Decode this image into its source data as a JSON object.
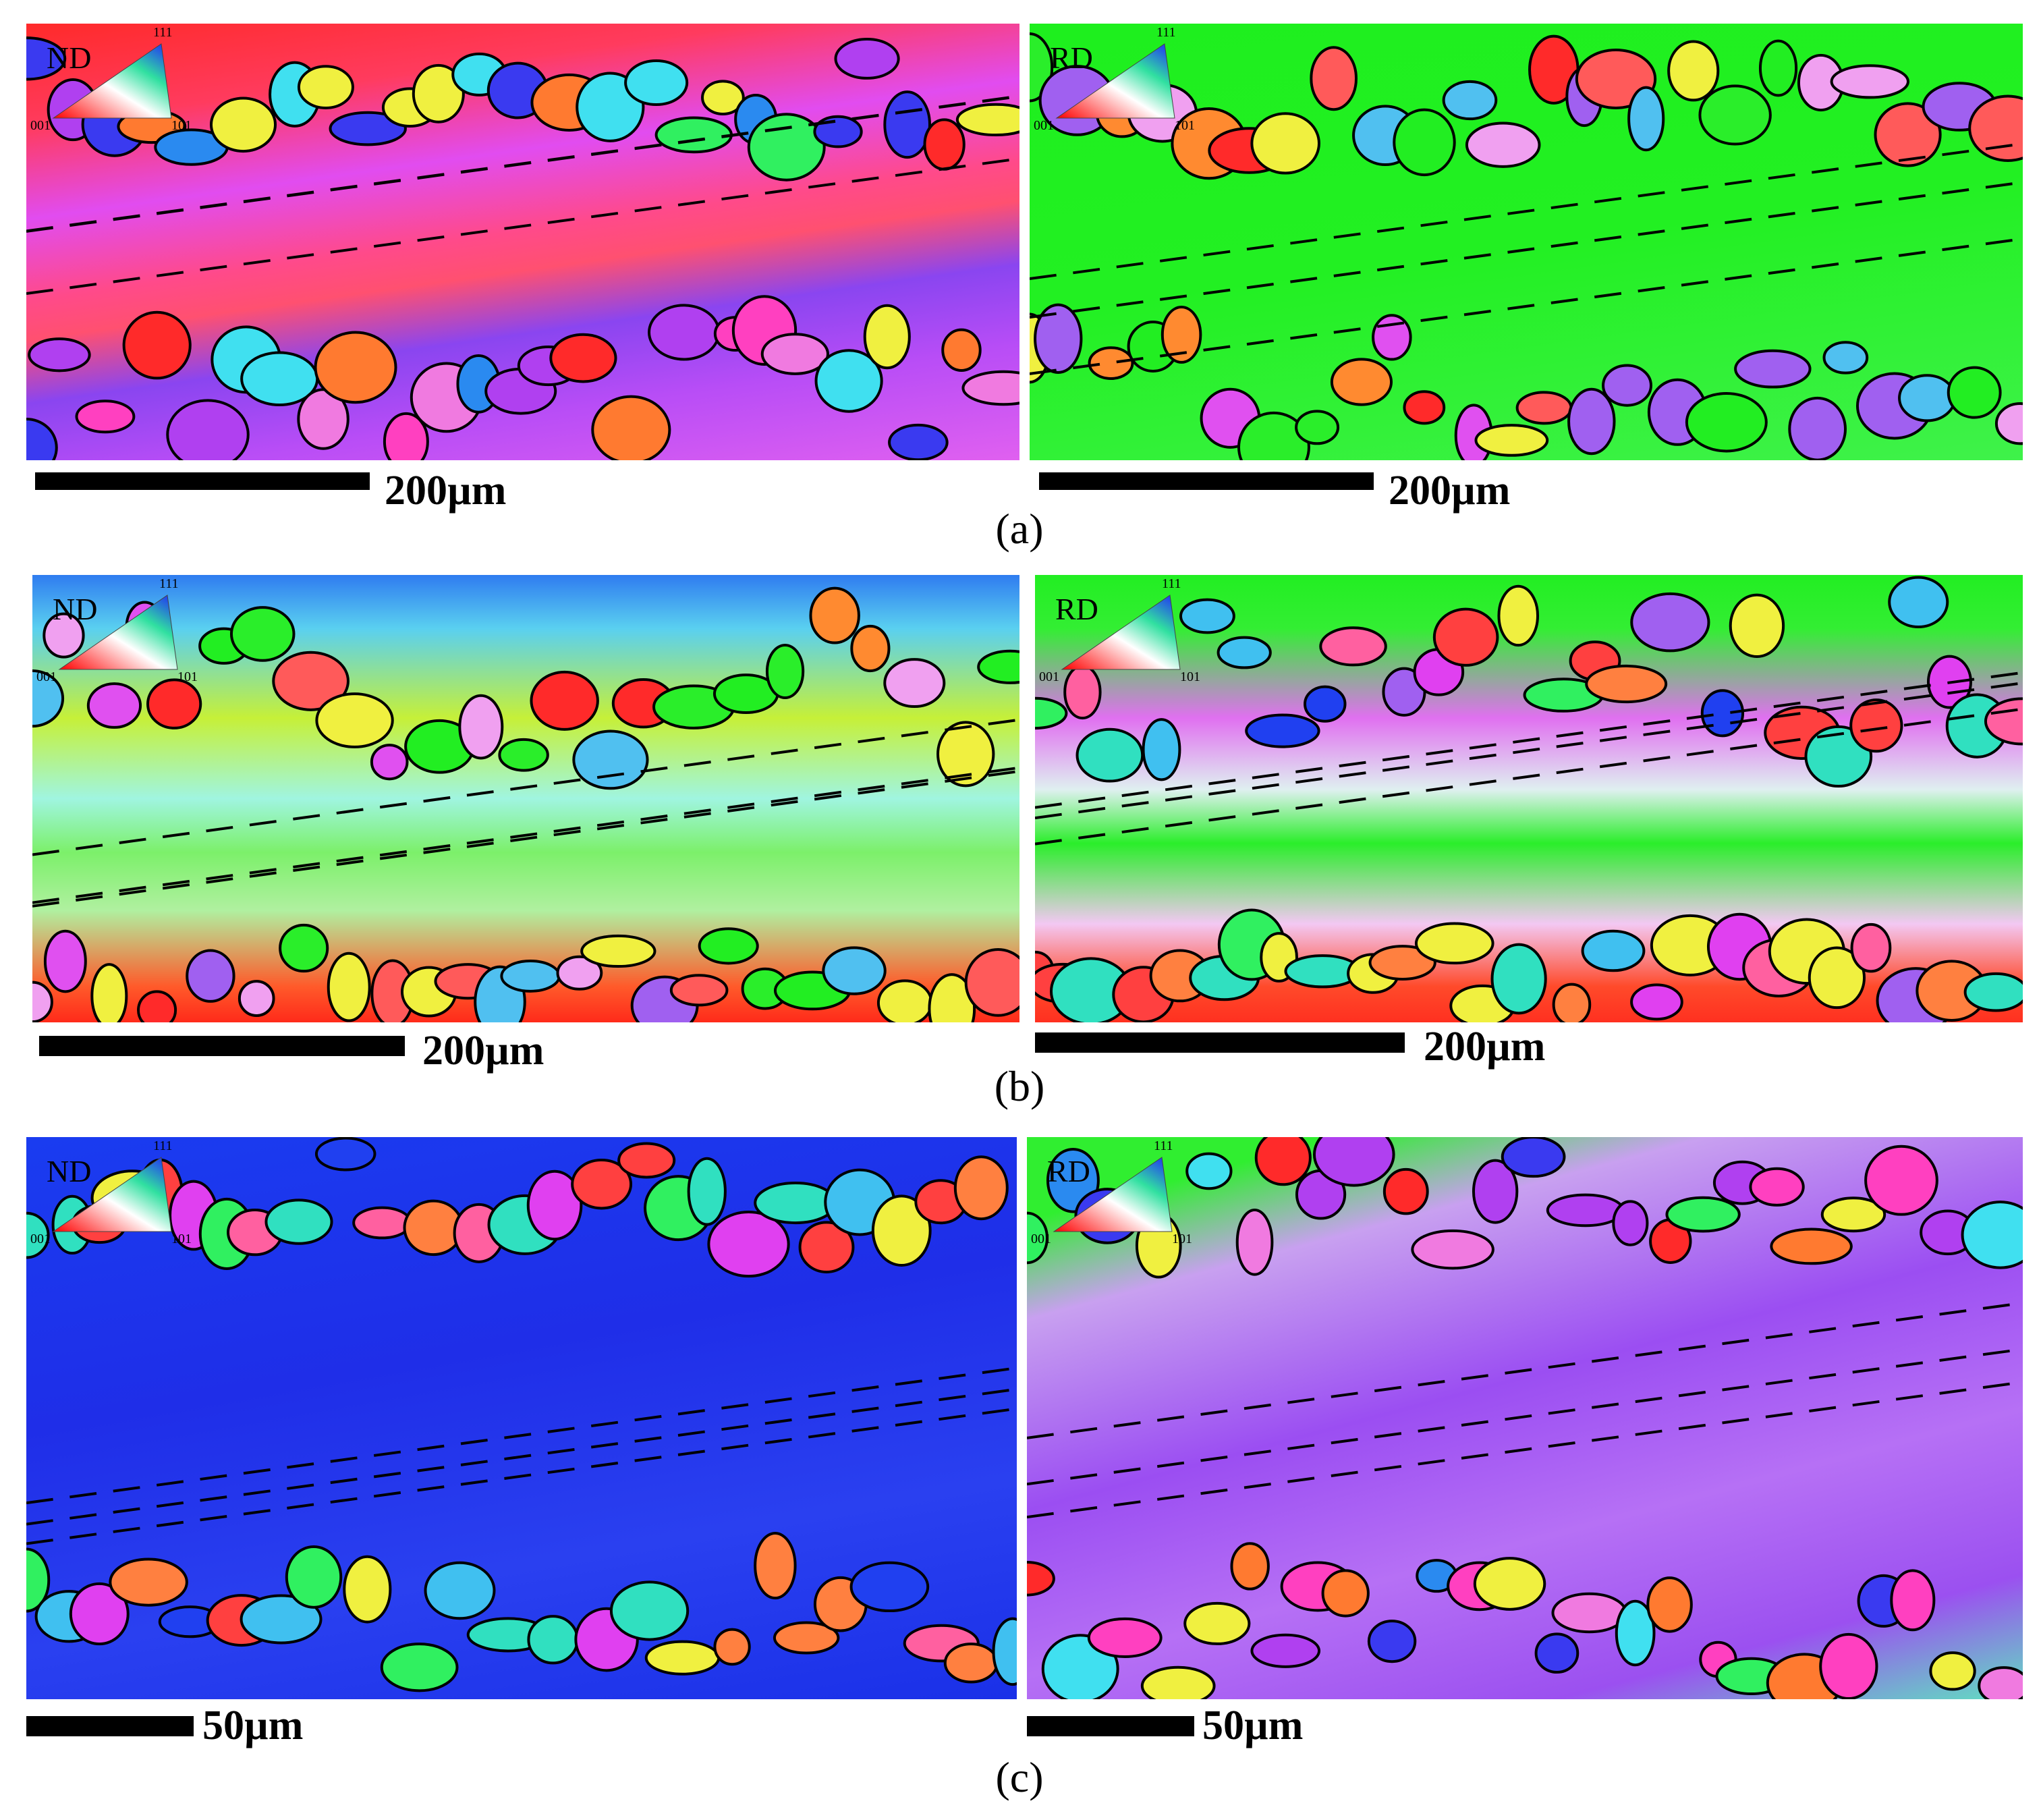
{
  "figure": {
    "rows": [
      {
        "label": "(a)",
        "maps": [
          {
            "direction": "ND",
            "key": {
              "top": "111",
              "left": "001",
              "right": "101"
            },
            "scale_bar": "200µm"
          },
          {
            "direction": "RD",
            "key": {
              "top": "111",
              "left": "001",
              "right": "101"
            },
            "scale_bar": "200µm"
          }
        ]
      },
      {
        "label": "(b)",
        "maps": [
          {
            "direction": "ND",
            "key": {
              "top": "111",
              "left": "001",
              "right": "101"
            },
            "scale_bar": "200µm"
          },
          {
            "direction": "RD",
            "key": {
              "top": "111",
              "left": "001",
              "right": "101"
            },
            "scale_bar": "200µm"
          }
        ]
      },
      {
        "label": "(c)",
        "maps": [
          {
            "direction": "ND",
            "key": {
              "top": "111",
              "left": "001",
              "right": "101"
            },
            "scale_bar": "50µm"
          },
          {
            "direction": "RD",
            "key": {
              "top": "111",
              "left": "001",
              "right": "101"
            },
            "scale_bar": "50µm"
          }
        ]
      }
    ]
  }
}
